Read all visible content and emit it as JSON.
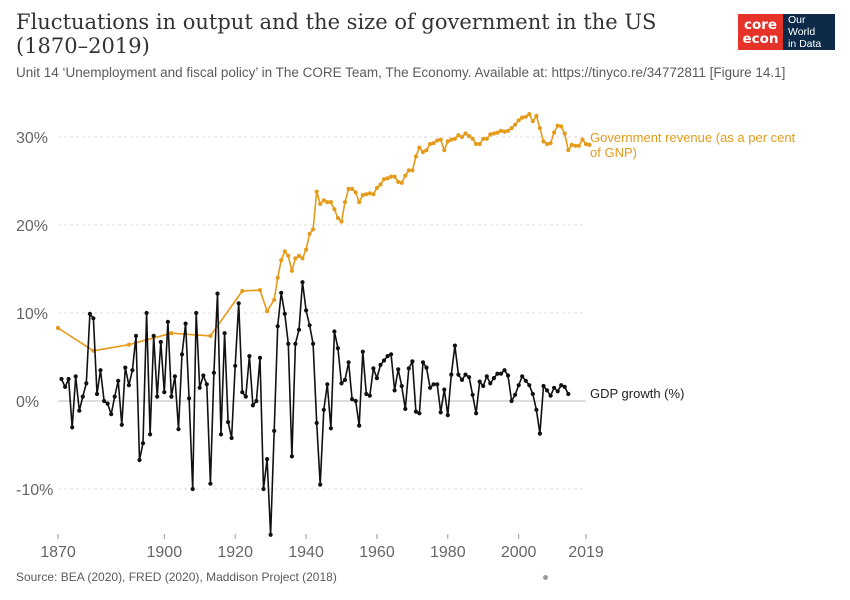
{
  "header": {
    "title_line1": "Fluctuations in output and the size of government in the US",
    "title_line2": "(1870–2019)",
    "subtitle": "Unit 14 ‘Unemployment and fiscal policy’ in The CORE Team, The Economy. Available at: https://tinyco.re/34772811 [Figure 14.1]",
    "logo_core_top": "core",
    "logo_core_bottom": "econ",
    "logo_owid_line1": "Our World",
    "logo_owid_line2": "in Data"
  },
  "footer": {
    "source": "Source: BEA (2020), FRED (2020), Maddison Project (2018)"
  },
  "colors": {
    "revenue": "#e59a19",
    "gdp": "#111111",
    "grid": "#dddddd",
    "zero_line": "#bbbbbb"
  },
  "chart_data": {
    "type": "line",
    "title": "Fluctuations in output and the size of government in the US (1870–2019)",
    "xlim": [
      1870,
      2019
    ],
    "ylim": [
      -15,
      33
    ],
    "y_ticks": [
      -10,
      0,
      10,
      20,
      30
    ],
    "y_tick_labels": [
      "-10%",
      "0%",
      "10%",
      "20%",
      "30%"
    ],
    "x_ticks": [
      1870,
      1900,
      1920,
      1940,
      1960,
      1980,
      2000,
      2019
    ],
    "x_tick_labels": [
      "1870",
      "1900",
      "1920",
      "1940",
      "1960",
      "1980",
      "2000",
      "2019"
    ],
    "grid": "horizontal dashed",
    "series": [
      {
        "name": "Government revenue (as a per cent of GNP)",
        "points": [
          [
            1870,
            8.3
          ],
          [
            1880,
            5.7
          ],
          [
            1890,
            6.4
          ],
          [
            1902,
            7.7
          ],
          [
            1913,
            7.4
          ],
          [
            1922,
            12.5
          ],
          [
            1927,
            12.6
          ],
          [
            1929,
            10.2
          ],
          [
            1931,
            11.5
          ],
          [
            1932,
            14
          ],
          [
            1933,
            16
          ],
          [
            1934,
            17
          ],
          [
            1935,
            16.5
          ],
          [
            1936,
            14.8
          ],
          [
            1937,
            16.2
          ],
          [
            1938,
            16.5
          ],
          [
            1939,
            16.2
          ],
          [
            1940,
            17.2
          ],
          [
            1941,
            19
          ],
          [
            1942,
            19.5
          ],
          [
            1943,
            23.8
          ],
          [
            1944,
            22.4
          ],
          [
            1945,
            22.8
          ],
          [
            1946,
            22.6
          ],
          [
            1947,
            22.6
          ],
          [
            1948,
            21.8
          ],
          [
            1949,
            20.8
          ],
          [
            1950,
            20.4
          ],
          [
            1951,
            22.6
          ],
          [
            1952,
            24.1
          ],
          [
            1953,
            24.1
          ],
          [
            1954,
            23.7
          ],
          [
            1955,
            22.6
          ],
          [
            1956,
            23.4
          ],
          [
            1957,
            23.5
          ],
          [
            1958,
            23.6
          ],
          [
            1959,
            23.5
          ],
          [
            1960,
            24.2
          ],
          [
            1961,
            24.6
          ],
          [
            1962,
            25.2
          ],
          [
            1963,
            25.3
          ],
          [
            1964,
            25.5
          ],
          [
            1965,
            25.5
          ],
          [
            1966,
            24.9
          ],
          [
            1967,
            24.8
          ],
          [
            1968,
            25.6
          ],
          [
            1969,
            26.2
          ],
          [
            1970,
            26.2
          ],
          [
            1971,
            27.8
          ],
          [
            1972,
            28.8
          ],
          [
            1973,
            28.3
          ],
          [
            1974,
            28.5
          ],
          [
            1975,
            29.2
          ],
          [
            1976,
            29.3
          ],
          [
            1977,
            29.6
          ],
          [
            1978,
            29.7
          ],
          [
            1979,
            28.5
          ],
          [
            1980,
            29.5
          ],
          [
            1981,
            29.7
          ],
          [
            1982,
            29.8
          ],
          [
            1983,
            30.2
          ],
          [
            1984,
            30
          ],
          [
            1985,
            30.4
          ],
          [
            1986,
            30.1
          ],
          [
            1987,
            29.8
          ],
          [
            1988,
            29.2
          ],
          [
            1989,
            29.2
          ],
          [
            1990,
            29.8
          ],
          [
            1991,
            29.8
          ],
          [
            1992,
            30.3
          ],
          [
            1993,
            30.4
          ],
          [
            1994,
            30.5
          ],
          [
            1995,
            30.7
          ],
          [
            1996,
            30.6
          ],
          [
            1997,
            30.7
          ],
          [
            1998,
            31
          ],
          [
            1999,
            31.4
          ],
          [
            2000,
            31.9
          ],
          [
            2001,
            32.2
          ],
          [
            2002,
            32.3
          ],
          [
            2003,
            32.6
          ],
          [
            2004,
            31.8
          ],
          [
            2005,
            32.4
          ],
          [
            2006,
            31
          ],
          [
            2007,
            29.5
          ],
          [
            2008,
            29.2
          ],
          [
            2009,
            29.3
          ],
          [
            2010,
            30.5
          ],
          [
            2011,
            31.3
          ],
          [
            2012,
            31.2
          ],
          [
            2013,
            30.4
          ],
          [
            2014,
            28.5
          ],
          [
            2015,
            29.1
          ],
          [
            2016,
            29
          ],
          [
            2017,
            29
          ],
          [
            2018,
            29.7
          ],
          [
            2019,
            29.2
          ],
          [
            2020,
            29.1
          ]
        ]
      },
      {
        "name": "GDP growth (%)",
        "points": [
          [
            1871,
            2.5
          ],
          [
            1872,
            1.6
          ],
          [
            1873,
            2.5
          ],
          [
            1874,
            -3
          ],
          [
            1875,
            2.8
          ],
          [
            1876,
            -1.1
          ],
          [
            1877,
            0.5
          ],
          [
            1878,
            2.0
          ],
          [
            1879,
            9.9
          ],
          [
            1880,
            9.4
          ],
          [
            1881,
            0.8
          ],
          [
            1882,
            3.5
          ],
          [
            1883,
            0
          ],
          [
            1884,
            -0.3
          ],
          [
            1885,
            -1.5
          ],
          [
            1886,
            0.5
          ],
          [
            1887,
            2.3
          ],
          [
            1888,
            -2.7
          ],
          [
            1889,
            3.8
          ],
          [
            1890,
            1.8
          ],
          [
            1891,
            3.5
          ],
          [
            1892,
            7.4
          ],
          [
            1893,
            -6.7
          ],
          [
            1894,
            -4.8
          ],
          [
            1895,
            10
          ],
          [
            1896,
            -3.8
          ],
          [
            1897,
            7.4
          ],
          [
            1898,
            0.5
          ],
          [
            1899,
            6.7
          ],
          [
            1900,
            1.0
          ],
          [
            1901,
            9
          ],
          [
            1902,
            0.5
          ],
          [
            1903,
            2.8
          ],
          [
            1904,
            -3.2
          ],
          [
            1905,
            5.3
          ],
          [
            1906,
            8.8
          ],
          [
            1907,
            0.3
          ],
          [
            1908,
            -10
          ],
          [
            1909,
            10
          ],
          [
            1910,
            1.5
          ],
          [
            1911,
            2.9
          ],
          [
            1912,
            1.9
          ],
          [
            1913,
            -9.4
          ],
          [
            1914,
            3.2
          ],
          [
            1915,
            12.2
          ],
          [
            1916,
            -3.8
          ],
          [
            1917,
            7.7
          ],
          [
            1918,
            -2.4
          ],
          [
            1919,
            -4.2
          ],
          [
            1920,
            4.0
          ],
          [
            1921,
            11.1
          ],
          [
            1922,
            1.0
          ],
          [
            1923,
            0.5
          ],
          [
            1924,
            5.1
          ],
          [
            1925,
            -0.5
          ],
          [
            1926,
            0
          ],
          [
            1927,
            4.9
          ],
          [
            1928,
            -10
          ],
          [
            1929,
            -6.6
          ],
          [
            1930,
            -15.2
          ],
          [
            1931,
            -3.4
          ],
          [
            1932,
            8.5
          ],
          [
            1933,
            12.3
          ],
          [
            1934,
            9.9
          ],
          [
            1935,
            6.5
          ],
          [
            1936,
            -6.3
          ],
          [
            1937,
            6.5
          ],
          [
            1938,
            8.1
          ],
          [
            1939,
            13.5
          ],
          [
            1940,
            10.3
          ],
          [
            1941,
            8.6
          ],
          [
            1942,
            6.5
          ],
          [
            1943,
            -2.5
          ],
          [
            1944,
            -9.5
          ],
          [
            1945,
            -1.0
          ],
          [
            1946,
            1.9
          ],
          [
            1947,
            -3.1
          ],
          [
            1948,
            7.9
          ],
          [
            1949,
            6.0
          ],
          [
            1950,
            2.0
          ],
          [
            1951,
            2.4
          ],
          [
            1952,
            4.4
          ],
          [
            1953,
            0.2
          ],
          [
            1954,
            0
          ],
          [
            1955,
            -2.8
          ],
          [
            1956,
            5.6
          ],
          [
            1957,
            0.8
          ],
          [
            1958,
            0.6
          ],
          [
            1959,
            3.7
          ],
          [
            1960,
            2.6
          ],
          [
            1961,
            4.1
          ],
          [
            1962,
            4.6
          ],
          [
            1963,
            5.1
          ],
          [
            1964,
            5.3
          ],
          [
            1965,
            1.2
          ],
          [
            1966,
            3.6
          ],
          [
            1967,
            1.7
          ],
          [
            1968,
            -0.9
          ],
          [
            1969,
            3.7
          ],
          [
            1970,
            4.5
          ],
          [
            1971,
            -1.2
          ],
          [
            1972,
            -1.4
          ],
          [
            1973,
            4.4
          ],
          [
            1974,
            3.8
          ],
          [
            1975,
            1.5
          ],
          [
            1976,
            1.9
          ],
          [
            1977,
            1.9
          ],
          [
            1978,
            -1.3
          ],
          [
            1979,
            1.3
          ],
          [
            1980,
            -1.6
          ],
          [
            1981,
            3.0
          ],
          [
            1982,
            6.3
          ],
          [
            1983,
            3.0
          ],
          [
            1984,
            2.4
          ],
          [
            1985,
            3.0
          ],
          [
            1986,
            2.7
          ],
          [
            1987,
            0.7
          ],
          [
            1988,
            -1.4
          ],
          [
            1989,
            2.2
          ],
          [
            1990,
            1.7
          ],
          [
            1991,
            2.8
          ],
          [
            1992,
            2.0
          ],
          [
            1993,
            2.6
          ],
          [
            1994,
            3.1
          ],
          [
            1995,
            3.1
          ],
          [
            1996,
            3.5
          ],
          [
            1997,
            2.9
          ],
          [
            1998,
            0
          ],
          [
            1999,
            0.7
          ],
          [
            2000,
            1.8
          ],
          [
            2001,
            2.8
          ],
          [
            2002,
            2.3
          ],
          [
            2003,
            1.8
          ],
          [
            2004,
            0.8
          ],
          [
            2005,
            -1
          ],
          [
            2006,
            -3.7
          ],
          [
            2007,
            1.7
          ],
          [
            2008,
            1.2
          ],
          [
            2009,
            0.6
          ],
          [
            2010,
            1.5
          ],
          [
            2011,
            1.1
          ],
          [
            2012,
            1.8
          ],
          [
            2013,
            1.6
          ],
          [
            2014,
            0.8
          ]
        ]
      }
    ]
  }
}
